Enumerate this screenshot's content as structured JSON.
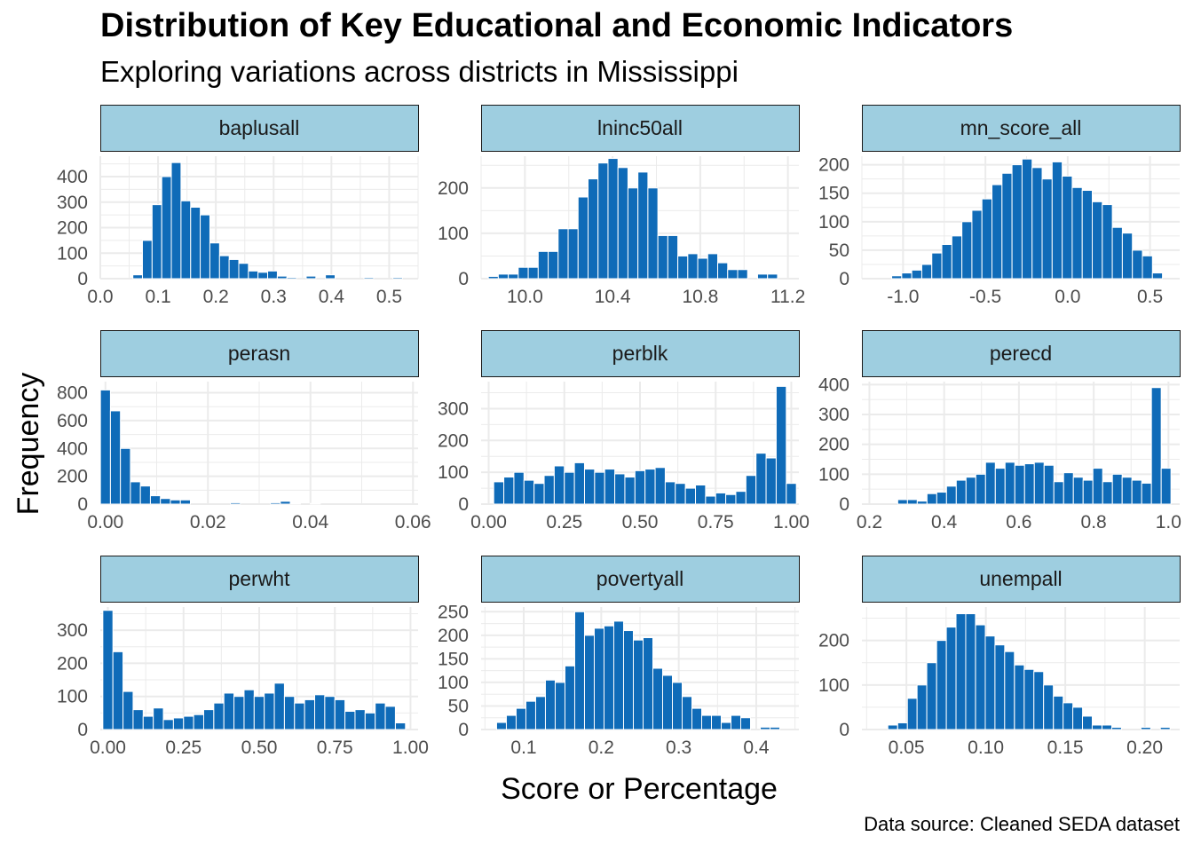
{
  "title": "Distribution of Key Educational and Economic Indicators",
  "subtitle": "Exploring variations across districts in Mississippi",
  "caption": "Data source: Cleaned SEDA dataset",
  "colors": {
    "bar": "#0f6bb8",
    "strip": "#9ecee0",
    "grid": "#ebebeb"
  },
  "chart_data": {
    "type": "bar",
    "xlabel": "Score or Percentage",
    "ylabel": "Frequency",
    "panels": [
      {
        "name": "baplusall",
        "xlim": [
          0,
          0.55
        ],
        "xticks": [
          0.0,
          0.1,
          0.2,
          0.3,
          0.4,
          0.5
        ],
        "xtick_labels": [
          "0.0",
          "0.1",
          "0.2",
          "0.3",
          "0.4",
          "0.5"
        ],
        "ylim": [
          0,
          480
        ],
        "yticks": [
          0,
          100,
          200,
          300,
          400
        ],
        "ytick_labels": [
          "0",
          "100",
          "200",
          "300",
          "400"
        ],
        "bin_width": 0.0167,
        "x": [
          0.0147,
          0.0313,
          0.048,
          0.0647,
          0.0813,
          0.098,
          0.1147,
          0.1313,
          0.148,
          0.1647,
          0.1813,
          0.198,
          0.2147,
          0.2313,
          0.248,
          0.2647,
          0.2813,
          0.298,
          0.3147,
          0.3313,
          0.348,
          0.3647,
          0.3813,
          0.398,
          0.4147,
          0.4313,
          0.448,
          0.4647,
          0.4813,
          0.498,
          0.5147,
          0.5313
        ],
        "values": [
          0,
          0,
          0,
          15,
          150,
          290,
          400,
          455,
          305,
          280,
          250,
          140,
          90,
          75,
          60,
          30,
          25,
          30,
          10,
          5,
          0,
          10,
          0,
          15,
          0,
          0,
          0,
          5,
          0,
          0,
          5,
          0
        ]
      },
      {
        "name": "lninc50all",
        "xlim": [
          9.8,
          11.25
        ],
        "xticks": [
          10.0,
          10.4,
          10.8,
          11.2
        ],
        "xtick_labels": [
          "10.0",
          "10.4",
          "10.8",
          "11.2"
        ],
        "ylim": [
          0,
          270
        ],
        "yticks": [
          0,
          100,
          200
        ],
        "ytick_labels": [
          "0",
          "100",
          "200"
        ],
        "bin_width": 0.0455,
        "x": [
          9.8558,
          9.9013,
          9.9468,
          9.9923,
          10.0378,
          10.0833,
          10.1288,
          10.1743,
          10.2198,
          10.2653,
          10.3108,
          10.3563,
          10.4018,
          10.4473,
          10.4928,
          10.5383,
          10.5838,
          10.6293,
          10.6748,
          10.7203,
          10.7658,
          10.8113,
          10.8568,
          10.9023,
          10.9478,
          10.9933,
          11.0388,
          11.0843,
          11.1298,
          11.1753
        ],
        "values": [
          5,
          10,
          10,
          25,
          25,
          60,
          60,
          110,
          110,
          180,
          220,
          255,
          265,
          245,
          200,
          235,
          200,
          95,
          95,
          50,
          55,
          45,
          55,
          35,
          20,
          20,
          0,
          10,
          10,
          0
        ]
      },
      {
        "name": "mn_score_all",
        "xlim": [
          -1.25,
          0.68
        ],
        "xticks": [
          -1.0,
          -0.5,
          0.0,
          0.5
        ],
        "xtick_labels": [
          "-1.0",
          "-0.5",
          "0.0",
          "0.5"
        ],
        "ylim": [
          0,
          215
        ],
        "yticks": [
          0,
          50,
          100,
          150,
          200
        ],
        "ytick_labels": [
          "0",
          "50",
          "100",
          "150",
          "200"
        ],
        "bin_width": 0.0609,
        "x": [
          -1.2213,
          -1.1604,
          -1.0995,
          -1.0386,
          -0.9777,
          -0.9168,
          -0.8559,
          -0.795,
          -0.7341,
          -0.6732,
          -0.6123,
          -0.5514,
          -0.4905,
          -0.4296,
          -0.3687,
          -0.3078,
          -0.2469,
          -0.1859,
          -0.125,
          -0.0641,
          -0.0032,
          0.0577,
          0.1186,
          0.1795,
          0.2404,
          0.3013,
          0.3622,
          0.4231,
          0.484,
          0.5449,
          0.6058
        ],
        "values": [
          0,
          0,
          0,
          5,
          10,
          15,
          25,
          45,
          60,
          75,
          100,
          120,
          140,
          165,
          185,
          200,
          210,
          195,
          175,
          205,
          180,
          160,
          155,
          135,
          130,
          90,
          80,
          50,
          40,
          10,
          0
        ]
      },
      {
        "name": "perasn",
        "xlim": [
          -0.001,
          0.061
        ],
        "xticks": [
          0.0,
          0.02,
          0.04,
          0.06
        ],
        "xtick_labels": [
          "0.00",
          "0.02",
          "0.04",
          "0.06"
        ],
        "ylim": [
          0,
          880
        ],
        "yticks": [
          0,
          200,
          400,
          600,
          800
        ],
        "ytick_labels": [
          "0",
          "200",
          "400",
          "600",
          "800"
        ],
        "bin_width": 0.00195,
        "x": [
          0.0,
          0.00195,
          0.0039,
          0.00585,
          0.0078,
          0.00975,
          0.0117,
          0.01365,
          0.0156,
          0.01755,
          0.0195,
          0.02145,
          0.0234,
          0.02535,
          0.0273,
          0.02925,
          0.0312,
          0.03315,
          0.0351,
          0.03705,
          0.039,
          0.04095,
          0.0429,
          0.04485,
          0.0468,
          0.04875,
          0.0507,
          0.05265,
          0.0546,
          0.05655,
          0.0585
        ],
        "values": [
          820,
          670,
          400,
          160,
          130,
          60,
          40,
          30,
          30,
          0,
          0,
          0,
          0,
          10,
          0,
          0,
          0,
          10,
          20,
          5,
          0,
          5,
          0,
          0,
          0,
          0,
          0,
          0,
          0,
          0,
          0
        ]
      },
      {
        "name": "perblk",
        "xlim": [
          -0.025,
          1.025
        ],
        "xticks": [
          0.0,
          0.25,
          0.5,
          0.75,
          1.0
        ],
        "xtick_labels": [
          "0.00",
          "0.25",
          "0.50",
          "0.75",
          "1.00"
        ],
        "ylim": [
          0,
          385
        ],
        "yticks": [
          0,
          100,
          200,
          300
        ],
        "ytick_labels": [
          "0",
          "100",
          "200",
          "300"
        ],
        "bin_width": 0.0333,
        "x": [
          0.0333,
          0.0667,
          0.1,
          0.1333,
          0.1667,
          0.2,
          0.2333,
          0.2667,
          0.3,
          0.3333,
          0.3667,
          0.4,
          0.4333,
          0.4667,
          0.5,
          0.5333,
          0.5667,
          0.6,
          0.6333,
          0.6667,
          0.7,
          0.7333,
          0.7667,
          0.8,
          0.8333,
          0.8667,
          0.9,
          0.9333,
          0.9667,
          1.0
        ],
        "values": [
          70,
          85,
          100,
          75,
          65,
          90,
          120,
          100,
          130,
          110,
          100,
          110,
          95,
          85,
          105,
          110,
          115,
          70,
          65,
          50,
          60,
          25,
          35,
          30,
          40,
          90,
          160,
          145,
          370,
          65
        ]
      },
      {
        "name": "perecd",
        "xlim": [
          0.18,
          1.03
        ],
        "xticks": [
          0.2,
          0.4,
          0.6,
          0.8,
          1.0
        ],
        "xtick_labels": [
          "0.2",
          "0.4",
          "0.6",
          "0.8",
          "1.0"
        ],
        "ylim": [
          0,
          410
        ],
        "yticks": [
          0,
          100,
          200,
          300,
          400
        ],
        "ytick_labels": [
          "0",
          "100",
          "200",
          "300",
          "400"
        ],
        "bin_width": 0.0261,
        "x": [
          0.2106,
          0.2367,
          0.2628,
          0.2889,
          0.315,
          0.3411,
          0.3672,
          0.3933,
          0.4194,
          0.4455,
          0.4716,
          0.4977,
          0.5238,
          0.5499,
          0.576,
          0.6021,
          0.6282,
          0.6543,
          0.6804,
          0.7065,
          0.7326,
          0.7587,
          0.7848,
          0.8109,
          0.837,
          0.8631,
          0.8892,
          0.9153,
          0.9414,
          0.9675,
          0.9936,
          1.0197
        ],
        "values": [
          0,
          0,
          0,
          15,
          15,
          10,
          35,
          40,
          60,
          80,
          90,
          100,
          140,
          120,
          140,
          130,
          135,
          140,
          130,
          75,
          105,
          90,
          80,
          120,
          75,
          100,
          90,
          80,
          70,
          390,
          120,
          0
        ]
      },
      {
        "name": "perwht",
        "xlim": [
          -0.025,
          1.025
        ],
        "xticks": [
          0.0,
          0.25,
          0.5,
          0.75,
          1.0
        ],
        "xtick_labels": [
          "0.00",
          "0.25",
          "0.50",
          "0.75",
          "1.00"
        ],
        "ylim": [
          0,
          370
        ],
        "yticks": [
          0,
          100,
          200,
          300
        ],
        "ytick_labels": [
          "0",
          "100",
          "200",
          "300"
        ],
        "bin_width": 0.0333,
        "x": [
          0.0,
          0.0333,
          0.0667,
          0.1,
          0.1333,
          0.1667,
          0.2,
          0.2333,
          0.2667,
          0.3,
          0.3333,
          0.3667,
          0.4,
          0.4333,
          0.4667,
          0.5,
          0.5333,
          0.5667,
          0.6,
          0.6333,
          0.6667,
          0.7,
          0.7333,
          0.7667,
          0.8,
          0.8333,
          0.8667,
          0.9,
          0.9333,
          0.9667
        ],
        "values": [
          360,
          235,
          115,
          60,
          40,
          65,
          30,
          35,
          40,
          45,
          60,
          80,
          110,
          100,
          120,
          100,
          110,
          140,
          100,
          80,
          90,
          105,
          100,
          90,
          55,
          60,
          50,
          80,
          70,
          20
        ]
      },
      {
        "name": "povertyall",
        "xlim": [
          0.045,
          0.455
        ],
        "xticks": [
          0.1,
          0.2,
          0.3,
          0.4
        ],
        "xtick_labels": [
          "0.1",
          "0.2",
          "0.3",
          "0.4"
        ],
        "ylim": [
          0,
          260
        ],
        "yticks": [
          0,
          50,
          100,
          150,
          200,
          250
        ],
        "ytick_labels": [
          "0",
          "50",
          "100",
          "150",
          "200",
          "250"
        ],
        "bin_width": 0.0126,
        "x": [
          0.0587,
          0.0713,
          0.0839,
          0.0965,
          0.1091,
          0.1217,
          0.1343,
          0.1469,
          0.1595,
          0.1721,
          0.1847,
          0.1973,
          0.2099,
          0.2225,
          0.2351,
          0.2477,
          0.2603,
          0.2729,
          0.2855,
          0.2981,
          0.3107,
          0.3233,
          0.3359,
          0.3485,
          0.3611,
          0.3737,
          0.3863,
          0.3989,
          0.4115,
          0.4241
        ],
        "values": [
          0,
          15,
          30,
          45,
          60,
          70,
          105,
          100,
          135,
          250,
          200,
          215,
          220,
          230,
          210,
          190,
          195,
          130,
          115,
          100,
          70,
          45,
          30,
          30,
          15,
          30,
          25,
          0,
          5,
          5
        ]
      },
      {
        "name": "unempall",
        "xlim": [
          0.022,
          0.222
        ],
        "xticks": [
          0.05,
          0.1,
          0.15,
          0.2
        ],
        "xtick_labels": [
          "0.05",
          "0.10",
          "0.15",
          "0.20"
        ],
        "ylim": [
          0,
          275
        ],
        "yticks": [
          0,
          100,
          200
        ],
        "ytick_labels": [
          "0",
          "100",
          "200"
        ],
        "bin_width": 0.00613,
        "x": [
          0.0292,
          0.0353,
          0.0414,
          0.0476,
          0.0537,
          0.0598,
          0.0659,
          0.0721,
          0.0782,
          0.0843,
          0.0904,
          0.0966,
          0.1027,
          0.1088,
          0.1149,
          0.1211,
          0.1272,
          0.1333,
          0.1394,
          0.1456,
          0.1517,
          0.1578,
          0.1639,
          0.17,
          0.1762,
          0.1823,
          0.1884,
          0.1945,
          0.2007,
          0.2068,
          0.2129
        ],
        "values": [
          0,
          0,
          10,
          15,
          70,
          100,
          150,
          200,
          230,
          260,
          260,
          235,
          210,
          190,
          175,
          145,
          135,
          130,
          100,
          75,
          60,
          50,
          30,
          10,
          10,
          5,
          0,
          0,
          5,
          0,
          5
        ]
      }
    ]
  }
}
